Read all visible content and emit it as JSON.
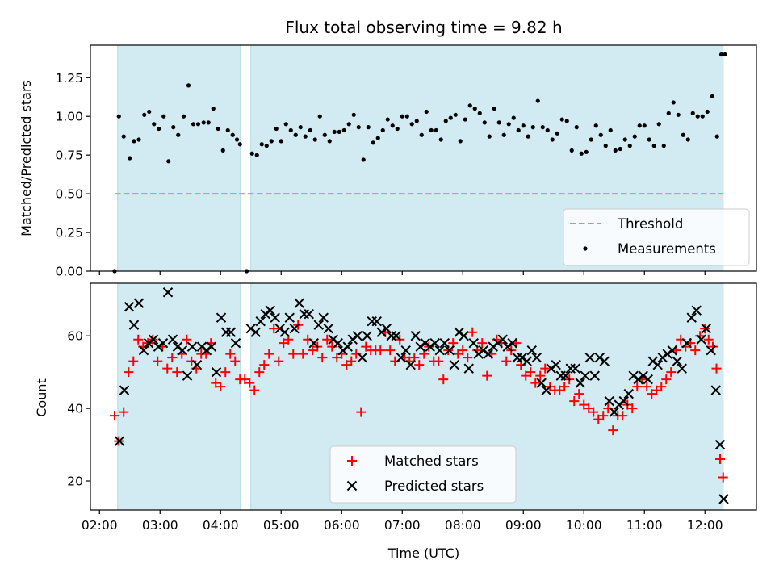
{
  "chart_data": [
    {
      "type": "scatter",
      "title": "Flux total observing time = 9.82 h",
      "xlabel": "",
      "ylabel": "Matched/Predicted stars",
      "xlim": [
        1.85,
        12.85
      ],
      "ylim": [
        0.0,
        1.46
      ],
      "xticks": [
        2,
        3,
        4,
        5,
        6,
        7,
        8,
        9,
        10,
        11,
        12
      ],
      "yticks": [
        0.0,
        0.25,
        0.5,
        0.75,
        1.0,
        1.25
      ],
      "ytick_labels": [
        "0.00",
        "0.25",
        "0.50",
        "0.75",
        "1.00",
        "1.25"
      ],
      "shaded_intervals": [
        [
          2.3,
          4.33
        ],
        [
          4.5,
          12.3
        ]
      ],
      "threshold": {
        "value": 0.5,
        "x_range": [
          2.25,
          12.3
        ],
        "color": "#f08080"
      },
      "legend": {
        "position": "lower-right",
        "entries": [
          {
            "label": "Threshold",
            "kind": "dashed-line"
          },
          {
            "label": "Measurements",
            "kind": "dot"
          }
        ]
      },
      "series": [
        {
          "name": "Measurements",
          "color": "#000000",
          "x": [
            2.25,
            2.32,
            2.4,
            2.5,
            2.57,
            2.65,
            2.74,
            2.82,
            2.9,
            2.98,
            3.06,
            3.14,
            3.22,
            3.3,
            3.39,
            3.47,
            3.55,
            3.63,
            3.72,
            3.8,
            3.88,
            3.96,
            4.04,
            4.12,
            4.2,
            4.27,
            4.32,
            4.43,
            4.52,
            4.6,
            4.68,
            4.76,
            4.84,
            4.92,
            5.0,
            5.08,
            5.16,
            5.24,
            5.32,
            5.4,
            5.48,
            5.56,
            5.64,
            5.72,
            5.8,
            5.88,
            5.96,
            6.04,
            6.12,
            6.2,
            6.28,
            6.36,
            6.44,
            6.52,
            6.6,
            6.68,
            6.76,
            6.84,
            6.92,
            7.0,
            7.08,
            7.16,
            7.24,
            7.32,
            7.4,
            7.48,
            7.56,
            7.64,
            7.72,
            7.8,
            7.88,
            7.96,
            8.04,
            8.12,
            8.2,
            8.28,
            8.36,
            8.44,
            8.52,
            8.6,
            8.68,
            8.76,
            8.84,
            8.92,
            9.0,
            9.08,
            9.16,
            9.24,
            9.32,
            9.4,
            9.48,
            9.56,
            9.64,
            9.72,
            9.8,
            9.88,
            9.96,
            10.04,
            10.12,
            10.2,
            10.28,
            10.36,
            10.44,
            10.52,
            10.6,
            10.68,
            10.76,
            10.84,
            10.92,
            11.0,
            11.08,
            11.16,
            11.24,
            11.32,
            11.4,
            11.48,
            11.56,
            11.64,
            11.72,
            11.8,
            11.88,
            11.96,
            12.04,
            12.12,
            12.2,
            12.27,
            12.33
          ],
          "y": [
            0.0,
            1.0,
            0.87,
            0.73,
            0.84,
            0.85,
            1.01,
            1.03,
            0.95,
            0.92,
            1.0,
            0.71,
            0.93,
            0.88,
            1.0,
            1.2,
            0.95,
            0.95,
            0.96,
            0.96,
            1.05,
            0.92,
            0.78,
            0.91,
            0.88,
            0.85,
            0.82,
            0.0,
            0.76,
            0.75,
            0.82,
            0.81,
            0.84,
            0.92,
            0.84,
            0.95,
            0.91,
            0.88,
            0.93,
            0.87,
            0.91,
            0.85,
            1.0,
            0.88,
            0.84,
            0.9,
            0.9,
            0.91,
            0.95,
            1.01,
            0.93,
            0.72,
            0.93,
            0.83,
            0.86,
            0.91,
            0.98,
            0.94,
            0.92,
            1.0,
            1.0,
            0.95,
            0.97,
            0.88,
            1.03,
            0.91,
            0.91,
            0.85,
            0.97,
            0.99,
            1.01,
            0.84,
            0.98,
            1.07,
            1.05,
            1.02,
            0.96,
            0.87,
            1.05,
            0.96,
            0.88,
            0.95,
            0.99,
            0.91,
            0.94,
            0.87,
            0.93,
            1.1,
            0.93,
            0.91,
            0.85,
            0.89,
            0.98,
            0.97,
            0.78,
            0.93,
            0.76,
            0.77,
            0.85,
            0.94,
            0.88,
            0.81,
            0.91,
            0.78,
            0.79,
            0.85,
            0.81,
            0.87,
            0.94,
            0.94,
            0.85,
            0.81,
            0.95,
            0.81,
            1.02,
            1.09,
            1.01,
            0.88,
            0.85,
            1.02,
            1.0,
            1.0,
            1.03,
            1.13,
            0.87,
            1.4,
            1.4
          ]
        }
      ]
    },
    {
      "type": "scatter",
      "title": "",
      "xlabel": "Time (UTC)",
      "ylabel": "Count",
      "xlim": [
        1.85,
        12.85
      ],
      "ylim": [
        12.0,
        74.5
      ],
      "xticks": [
        2,
        3,
        4,
        5,
        6,
        7,
        8,
        9,
        10,
        11,
        12
      ],
      "xtick_labels": [
        "02:00",
        "03:00",
        "04:00",
        "05:00",
        "06:00",
        "07:00",
        "08:00",
        "09:00",
        "10:00",
        "11:00",
        "12:00"
      ],
      "yticks": [
        20,
        40,
        60
      ],
      "ytick_labels": [
        "20",
        "40",
        "60"
      ],
      "shaded_intervals": [
        [
          2.3,
          4.33
        ],
        [
          4.5,
          12.3
        ]
      ],
      "legend": {
        "position": "lower-center",
        "entries": [
          {
            "label": "Matched stars",
            "kind": "plus"
          },
          {
            "label": "Predicted stars",
            "kind": "cross"
          }
        ]
      },
      "series": [
        {
          "name": "Matched stars",
          "marker": "+",
          "color": "#ff0000",
          "x": [
            2.25,
            2.32,
            2.4,
            2.48,
            2.56,
            2.64,
            2.72,
            2.8,
            2.88,
            2.96,
            3.04,
            3.12,
            3.2,
            3.28,
            3.36,
            3.44,
            3.52,
            3.6,
            3.68,
            3.76,
            3.84,
            3.92,
            4.0,
            4.08,
            4.16,
            4.24,
            4.32,
            4.4,
            4.48,
            4.56,
            4.64,
            4.72,
            4.8,
            4.88,
            4.96,
            5.04,
            5.12,
            5.2,
            5.28,
            5.36,
            5.44,
            5.52,
            5.6,
            5.68,
            5.76,
            5.84,
            5.92,
            6.0,
            6.08,
            6.16,
            6.24,
            6.32,
            6.4,
            6.48,
            6.56,
            6.64,
            6.72,
            6.8,
            6.88,
            6.96,
            7.04,
            7.12,
            7.2,
            7.28,
            7.36,
            7.44,
            7.52,
            7.6,
            7.68,
            7.76,
            7.84,
            7.92,
            8.0,
            8.08,
            8.16,
            8.24,
            8.32,
            8.4,
            8.48,
            8.56,
            8.64,
            8.72,
            8.8,
            8.88,
            8.96,
            9.04,
            9.12,
            9.2,
            9.28,
            9.36,
            9.44,
            9.52,
            9.6,
            9.68,
            9.76,
            9.84,
            9.92,
            10.0,
            10.08,
            10.16,
            10.24,
            10.32,
            10.4,
            10.48,
            10.56,
            10.64,
            10.72,
            10.8,
            10.88,
            10.96,
            11.04,
            11.12,
            11.2,
            11.28,
            11.36,
            11.44,
            11.52,
            11.6,
            11.68,
            11.76,
            11.84,
            11.92,
            12.0,
            12.06,
            12.13,
            12.19,
            12.25,
            12.3
          ],
          "y": [
            38,
            31,
            39,
            50,
            53,
            59,
            57,
            58,
            59,
            53,
            57,
            51,
            54,
            50,
            55,
            59,
            53,
            51,
            55,
            55,
            58,
            47,
            46,
            50,
            55,
            53,
            48,
            48,
            47,
            45,
            50,
            52,
            55,
            62,
            53,
            58,
            59,
            55,
            63,
            55,
            59,
            56,
            57,
            54,
            59,
            57,
            54,
            55,
            52,
            53,
            55,
            39,
            57,
            56,
            56,
            56,
            61,
            56,
            53,
            59,
            54,
            53,
            54,
            52,
            55,
            57,
            53,
            53,
            48,
            56,
            58,
            55,
            56,
            54,
            61,
            56,
            58,
            49,
            55,
            59,
            58,
            53,
            56,
            58,
            52,
            49,
            50,
            47,
            49,
            51,
            46,
            45,
            45,
            46,
            48,
            42,
            44,
            41,
            40,
            39,
            37,
            38,
            40,
            34,
            38,
            38,
            41,
            40,
            46,
            48,
            46,
            44,
            45,
            46,
            48,
            50,
            56,
            59,
            57,
            58,
            56,
            60,
            62,
            59,
            57,
            51,
            26,
            21
          ]
        },
        {
          "name": "Predicted stars",
          "marker": "x",
          "color": "#000000",
          "x": [
            2.33,
            2.41,
            2.49,
            2.57,
            2.65,
            2.73,
            2.81,
            2.89,
            2.97,
            3.05,
            3.13,
            3.21,
            3.29,
            3.37,
            3.45,
            3.53,
            3.61,
            3.69,
            3.77,
            3.85,
            3.93,
            4.01,
            4.09,
            4.17,
            4.25,
            4.5,
            4.58,
            4.66,
            4.74,
            4.82,
            4.9,
            4.98,
            5.06,
            5.14,
            5.22,
            5.3,
            5.38,
            5.46,
            5.54,
            5.62,
            5.7,
            5.78,
            5.86,
            5.94,
            6.02,
            6.1,
            6.18,
            6.26,
            6.34,
            6.42,
            6.5,
            6.58,
            6.66,
            6.74,
            6.82,
            6.9,
            6.98,
            7.06,
            7.14,
            7.22,
            7.3,
            7.38,
            7.46,
            7.54,
            7.62,
            7.7,
            7.78,
            7.86,
            7.94,
            8.02,
            8.1,
            8.18,
            8.26,
            8.34,
            8.42,
            8.5,
            8.58,
            8.66,
            8.74,
            8.82,
            8.9,
            8.98,
            9.06,
            9.14,
            9.22,
            9.3,
            9.38,
            9.46,
            9.54,
            9.62,
            9.7,
            9.78,
            9.86,
            9.94,
            10.02,
            10.1,
            10.18,
            10.26,
            10.34,
            10.42,
            10.5,
            10.58,
            10.66,
            10.74,
            10.82,
            10.9,
            10.98,
            11.06,
            11.14,
            11.22,
            11.3,
            11.38,
            11.46,
            11.54,
            11.62,
            11.7,
            11.78,
            11.86,
            11.94,
            12.02,
            12.1,
            12.18,
            12.25,
            12.31
          ],
          "y": [
            31,
            45,
            68,
            63,
            69,
            56,
            58,
            59,
            57,
            58,
            72,
            59,
            57,
            56,
            49,
            57,
            52,
            57,
            56,
            57,
            50,
            65,
            61,
            61,
            58,
            62,
            61,
            64,
            66,
            67,
            65,
            62,
            61,
            65,
            62,
            69,
            66,
            66,
            58,
            63,
            65,
            62,
            59,
            58,
            56,
            57,
            59,
            60,
            54,
            60,
            64,
            64,
            61,
            62,
            60,
            60,
            54,
            56,
            52,
            60,
            57,
            58,
            57,
            58,
            56,
            58,
            56,
            52,
            61,
            60,
            51,
            58,
            55,
            56,
            55,
            57,
            58,
            59,
            57,
            58,
            54,
            54,
            53,
            56,
            54,
            47,
            45,
            51,
            52,
            49,
            49,
            51,
            51,
            47,
            49,
            54,
            49,
            54,
            53,
            42,
            39,
            41,
            42,
            44,
            49,
            48,
            49,
            48,
            53,
            52,
            54,
            55,
            56,
            53,
            51,
            58,
            65,
            67,
            59,
            62,
            56,
            45,
            30,
            15
          ]
        }
      ]
    }
  ]
}
